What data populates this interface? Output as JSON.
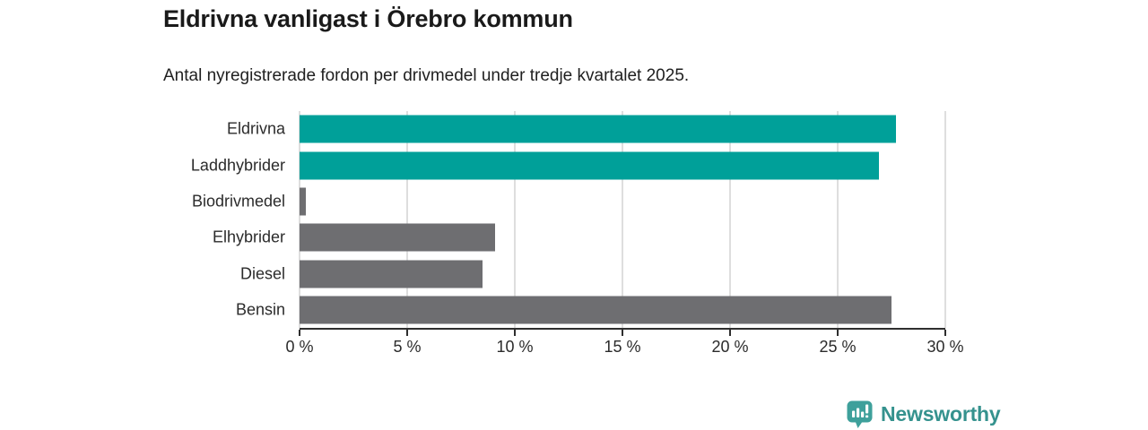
{
  "header": {
    "title": "Eldrivna vanligast i Örebro kommun",
    "subtitle": "Antal nyregistrerade fordon per drivmedel under tredje kvartalet 2025."
  },
  "chart_data": {
    "type": "bar",
    "orientation": "horizontal",
    "title": "Eldrivna vanligast i Örebro kommun",
    "subtitle": "Antal nyregistrerade fordon per drivmedel under tredje kvartalet 2025.",
    "categories": [
      "Eldrivna",
      "Laddhybrider",
      "Biodrivmedel",
      "Elhybrider",
      "Diesel",
      "Bensin"
    ],
    "values": [
      27.7,
      26.9,
      0.3,
      9.1,
      8.5,
      27.5
    ],
    "unit": "%",
    "xlim": [
      0,
      30
    ],
    "xticks": [
      0,
      5,
      10,
      15,
      20,
      25,
      30
    ],
    "xtick_labels": [
      "0 %",
      "5 %",
      "10 %",
      "15 %",
      "20 %",
      "25 %",
      "30 %"
    ],
    "grid": "vertical-light",
    "legend": "none",
    "bar_colors": [
      "#00a099",
      "#00a099",
      "#6e6e71",
      "#6e6e71",
      "#6e6e71",
      "#6e6e71"
    ],
    "highlight_color": "#00a099",
    "default_color": "#6e6e71",
    "gridline_color": "#dedede",
    "axis_color": "#2e2e2e"
  },
  "footer": {
    "brand": "Newsworthy",
    "brand_color": "#35928e",
    "logo_color": "#3ea09b",
    "logo_icon": "speech-bubble-bar-chart-icon"
  }
}
